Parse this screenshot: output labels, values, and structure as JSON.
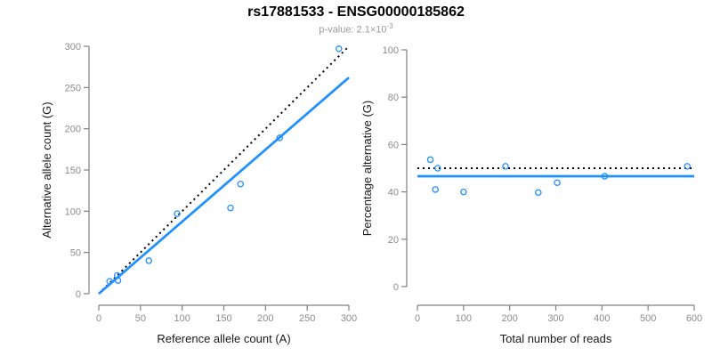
{
  "header": {
    "title": "rs17881533 - ENSG00000185862",
    "subtitle_base": "p-value: 2.1×10",
    "subtitle_exponent": "-3"
  },
  "colors": {
    "accent_blue": "#1E90FF",
    "dotted_black": "#000000",
    "tick_label": "#8c8c8c",
    "axis_line": "#808080",
    "axis_title": "#1a1a1a",
    "subtitle_gray": "#9a9a9a"
  },
  "chart_data": [
    {
      "type": "scatter",
      "name": "allele-counts-scatter",
      "xlabel": "Reference allele count (A)",
      "ylabel": "Alternative allele count (G)",
      "xlim": [
        0,
        300
      ],
      "ylim": [
        0,
        300
      ],
      "xticks": [
        0,
        50,
        100,
        150,
        200,
        250,
        300
      ],
      "yticks": [
        0,
        50,
        100,
        150,
        200,
        250,
        300
      ],
      "grid": false,
      "points": [
        [
          13,
          15
        ],
        [
          22,
          22
        ],
        [
          23,
          16
        ],
        [
          60,
          40
        ],
        [
          94,
          97
        ],
        [
          158,
          104
        ],
        [
          170,
          133
        ],
        [
          217,
          189
        ],
        [
          288,
          297
        ]
      ],
      "lines": [
        {
          "name": "identity",
          "style": "dotted",
          "color": "#000000",
          "from": [
            0,
            0
          ],
          "to": [
            300,
            300
          ]
        },
        {
          "name": "regression",
          "style": "solid",
          "color": "#1E90FF",
          "from": [
            0,
            0
          ],
          "to": [
            300,
            262.1
          ]
        }
      ]
    },
    {
      "type": "scatter",
      "name": "percentage-alternative-scatter",
      "xlabel": "Total number of reads",
      "ylabel": "Percentage alternative (G)",
      "xlim": [
        0,
        600
      ],
      "ylim": [
        0,
        100
      ],
      "xticks": [
        0,
        100,
        200,
        300,
        400,
        500,
        600
      ],
      "yticks": [
        0,
        20,
        40,
        60,
        80,
        100
      ],
      "grid": false,
      "points": [
        [
          28,
          53.6
        ],
        [
          44,
          50.0
        ],
        [
          39,
          41.0
        ],
        [
          100,
          40.0
        ],
        [
          191,
          50.8
        ],
        [
          262,
          39.7
        ],
        [
          303,
          43.9
        ],
        [
          406,
          46.6
        ],
        [
          585,
          50.8
        ]
      ],
      "lines": [
        {
          "name": "expected-fifty",
          "style": "dotted",
          "color": "#000000",
          "from": [
            0,
            50
          ],
          "to": [
            600,
            50
          ]
        },
        {
          "name": "mean-percentage",
          "style": "solid",
          "color": "#1E90FF",
          "from": [
            0,
            46.6
          ],
          "to": [
            600,
            46.6
          ]
        }
      ]
    }
  ]
}
